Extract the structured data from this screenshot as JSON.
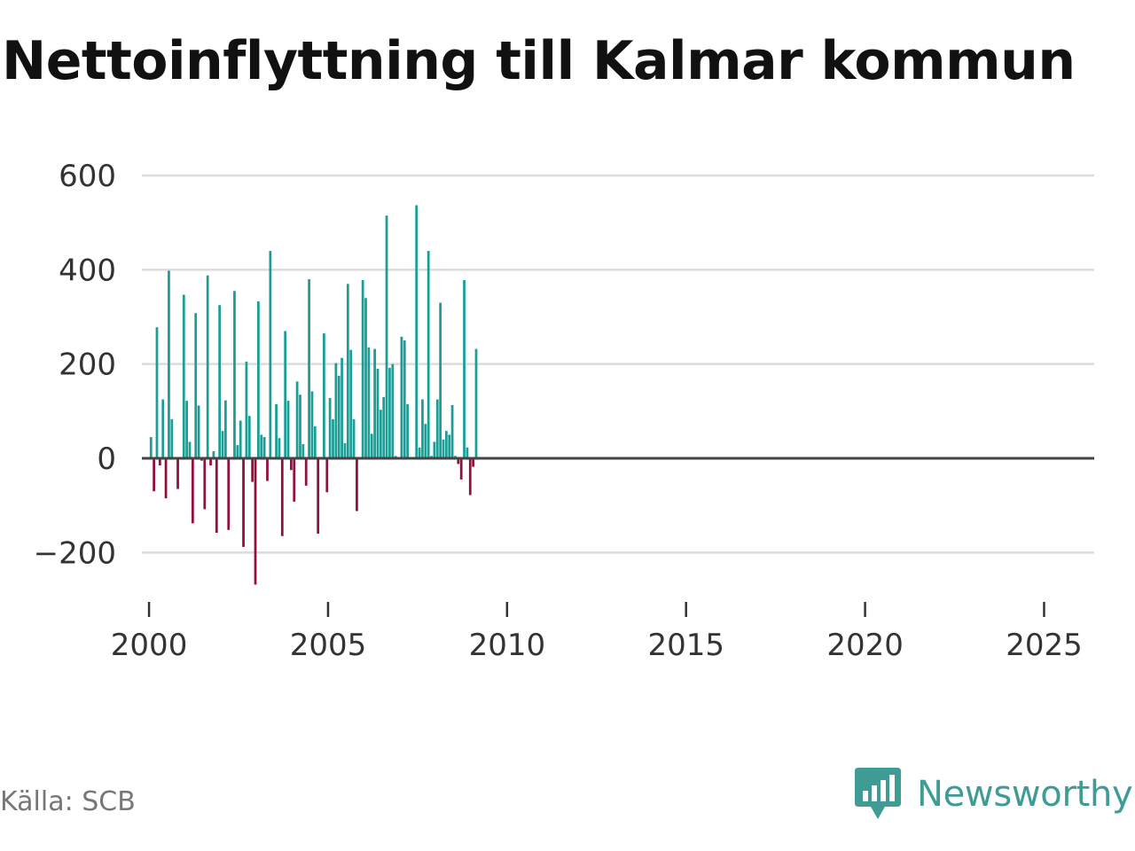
{
  "chart_data": {
    "type": "bar",
    "title": "Nettoinflyttning till Kalmar kommun",
    "xlabel": "",
    "ylabel": "",
    "ylim": [
      -270,
      640
    ],
    "xlim": [
      1999.8,
      2026.4
    ],
    "y_ticks": [
      600,
      400,
      200,
      0,
      -200
    ],
    "y_tick_labels": [
      "600",
      "400",
      "200",
      "0",
      "−200"
    ],
    "x_ticks": [
      2000,
      2005,
      2010,
      2015,
      2020,
      2025
    ],
    "x_tick_labels": [
      "2000",
      "2005",
      "2010",
      "2015",
      "2020",
      "2025"
    ],
    "frequency": "monthly, starting 2000-01",
    "positive_color": "#1a9e96",
    "negative_color": "#930f3e",
    "values": [
      45,
      -70,
      278,
      -15,
      125,
      -85,
      398,
      83,
      0,
      -65,
      0,
      347,
      122,
      35,
      -138,
      308,
      112,
      -5,
      -108,
      388,
      -15,
      15,
      -158,
      325,
      58,
      123,
      -152,
      0,
      355,
      28,
      80,
      -188,
      205,
      90,
      -50,
      -268,
      333,
      50,
      45,
      -48,
      440,
      0,
      115,
      43,
      -165,
      270,
      122,
      -25,
      -92,
      163,
      135,
      30,
      -58,
      380,
      142,
      68,
      -160,
      0,
      265,
      -72,
      128,
      83,
      202,
      175,
      213,
      32,
      370,
      230,
      83,
      -112,
      0,
      378,
      340,
      235,
      52,
      232,
      190,
      103,
      130,
      515,
      192,
      200,
      5,
      0,
      258,
      250,
      115,
      0,
      0,
      537,
      23,
      125,
      73,
      440,
      5,
      35,
      125,
      330,
      40,
      58,
      50,
      113,
      5,
      -12,
      -45,
      378,
      23,
      -78,
      -18,
      232
    ]
  },
  "source": {
    "text": "Källa: SCB"
  },
  "brand": {
    "name": "Newsworthy",
    "color": "#3e9c95",
    "icon": "newsworthy-logo-icon"
  }
}
